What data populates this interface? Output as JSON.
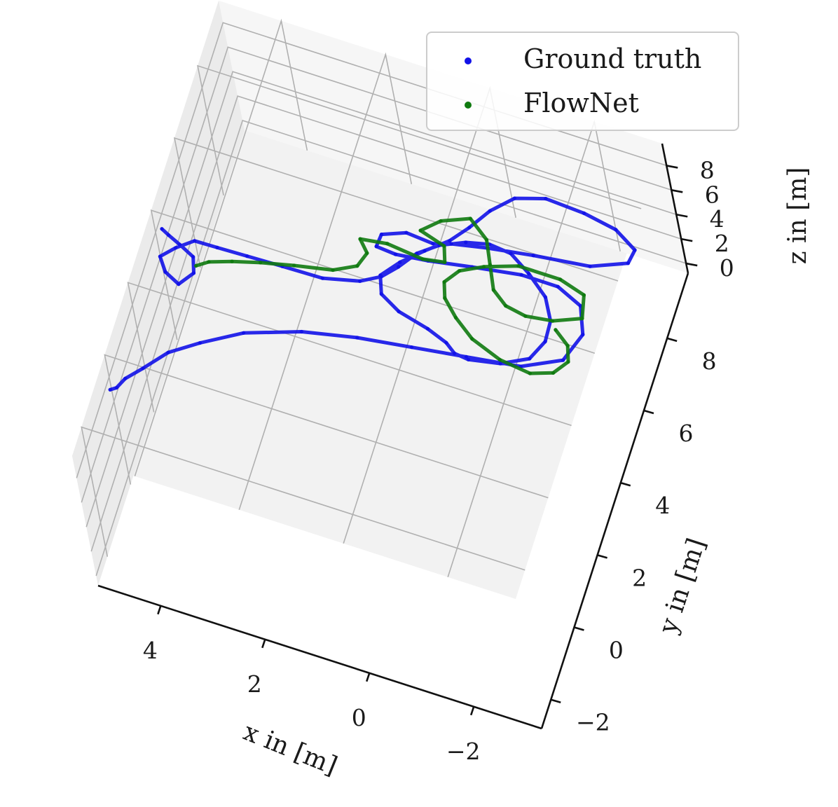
{
  "chart_data": {
    "type": "scatter",
    "projection": "3d",
    "xlabel": "x in [m]",
    "ylabel": "y in [m]",
    "zlabel": "z in [m]",
    "x_ticks": [
      "4",
      "2",
      "0",
      "−2"
    ],
    "y_ticks": [
      "−2",
      "0",
      "2",
      "4",
      "6",
      "8"
    ],
    "z_ticks": [
      "0",
      "2",
      "4",
      "6",
      "8"
    ],
    "xlim": [
      5.2,
      -3.3
    ],
    "ylim": [
      -2.8,
      9.8
    ],
    "zlim": [
      -0.8,
      9.8
    ],
    "grid": true,
    "legend": "top-right",
    "series": [
      {
        "name": "Ground truth",
        "color": "#1212e8",
        "points": [
          [
            5.0,
            -0.6,
            9.0
          ],
          [
            4.9,
            -0.5,
            9.0
          ],
          [
            4.8,
            -0.2,
            9.0
          ],
          [
            4.55,
            0.2,
            9.0
          ],
          [
            4.2,
            0.8,
            9.0
          ],
          [
            3.7,
            1.3,
            9.0
          ],
          [
            3.0,
            1.9,
            9.0
          ],
          [
            2.0,
            2.4,
            9.0
          ],
          [
            1.0,
            2.7,
            9.0
          ],
          [
            0.0,
            2.9,
            9.0
          ],
          [
            -1.0,
            3.1,
            9.0
          ],
          [
            -2.0,
            3.3,
            9.0
          ],
          [
            -2.7,
            3.8,
            9.0
          ],
          [
            -2.9,
            4.6,
            9.0
          ],
          [
            -2.7,
            5.3,
            9.0
          ],
          [
            -2.2,
            5.6,
            9.0
          ],
          [
            -1.5,
            5.6,
            9.0
          ],
          [
            -0.6,
            5.4,
            9.0
          ],
          [
            0.2,
            5.2,
            9.0
          ],
          [
            0.8,
            5.1,
            9.0
          ],
          [
            1.2,
            5.2,
            8.8
          ],
          [
            1.2,
            5.6,
            8.6
          ],
          [
            0.8,
            5.9,
            8.4
          ],
          [
            0.3,
            5.9,
            8.2
          ],
          [
            0.0,
            6.1,
            8.0
          ],
          [
            -0.6,
            6.4,
            7.6
          ],
          [
            -1.4,
            6.7,
            7.2
          ],
          [
            -2.4,
            7.0,
            6.8
          ],
          [
            -3.0,
            7.5,
            6.4
          ],
          [
            -3.0,
            8.0,
            6.0
          ],
          [
            -2.5,
            8.5,
            5.5
          ],
          [
            -1.8,
            8.8,
            5.0
          ],
          [
            -1.0,
            9.0,
            4.5
          ],
          [
            -0.4,
            8.9,
            4.0
          ],
          [
            0.0,
            8.5,
            3.6
          ],
          [
            0.3,
            8.0,
            3.3
          ],
          [
            0.6,
            7.6,
            3.0
          ],
          [
            1.0,
            7.2,
            2.8
          ],
          [
            1.4,
            6.8,
            2.5
          ],
          [
            1.7,
            6.4,
            2.2
          ],
          [
            1.6,
            6.0,
            2.0
          ],
          [
            1.2,
            5.7,
            2.0
          ],
          [
            0.6,
            5.5,
            2.0
          ],
          [
            0.2,
            5.3,
            2.0
          ],
          [
            0.0,
            5.1,
            2.0
          ],
          [
            -0.3,
            5.0,
            2.2
          ],
          [
            -0.9,
            5.1,
            2.4
          ],
          [
            -1.4,
            5.4,
            2.6
          ],
          [
            -1.6,
            5.9,
            2.8
          ],
          [
            -1.6,
            6.4,
            3.0
          ],
          [
            -1.4,
            6.9,
            3.2
          ],
          [
            -1.0,
            7.3,
            3.4
          ],
          [
            -0.6,
            7.6,
            3.6
          ],
          [
            -0.2,
            7.6,
            3.8
          ],
          [
            0.2,
            7.4,
            4.0
          ],
          [
            0.6,
            7.0,
            4.4
          ],
          [
            0.9,
            6.5,
            4.8
          ],
          [
            1.1,
            5.9,
            5.2
          ],
          [
            1.3,
            5.4,
            5.6
          ],
          [
            1.6,
            5.0,
            6.0
          ],
          [
            2.2,
            4.6,
            6.6
          ],
          [
            2.9,
            4.4,
            7.2
          ],
          [
            3.5,
            4.2,
            7.8
          ],
          [
            4.0,
            4.0,
            8.4
          ],
          [
            4.4,
            3.9,
            8.7
          ],
          [
            4.7,
            3.6,
            8.6
          ],
          [
            4.9,
            3.2,
            8.8
          ],
          [
            4.7,
            2.8,
            9.0
          ],
          [
            4.4,
            2.6,
            9.0
          ],
          [
            4.2,
            3.0,
            9.0
          ],
          [
            4.3,
            3.4,
            9.0
          ],
          [
            4.6,
            3.6,
            9.0
          ],
          [
            4.85,
            3.75,
            9.0
          ],
          [
            5.0,
            3.85,
            9.0
          ]
        ]
      },
      {
        "name": "FlowNet",
        "color": "#0f7a0f",
        "points": [
          [
            4.2,
            3.2,
            9.0
          ],
          [
            4.0,
            3.4,
            9.0
          ],
          [
            3.6,
            3.6,
            9.0
          ],
          [
            3.1,
            3.8,
            9.0
          ],
          [
            2.5,
            4.0,
            9.0
          ],
          [
            1.8,
            4.2,
            9.0
          ],
          [
            1.4,
            4.5,
            9.0
          ],
          [
            1.3,
            4.9,
            9.0
          ],
          [
            1.5,
            5.2,
            9.0
          ],
          [
            1.0,
            5.3,
            9.0
          ],
          [
            0.3,
            5.2,
            9.0
          ],
          [
            -0.1,
            5.3,
            9.0
          ],
          [
            0.0,
            5.7,
            9.0
          ],
          [
            0.5,
            5.9,
            9.0
          ],
          [
            0.2,
            6.3,
            9.0
          ],
          [
            -0.3,
            6.6,
            9.0
          ],
          [
            -0.7,
            6.2,
            9.0
          ],
          [
            -0.9,
            5.6,
            9.0
          ],
          [
            -1.1,
            5.0,
            9.0
          ],
          [
            -1.4,
            4.7,
            9.0
          ],
          [
            -1.8,
            4.6,
            9.0
          ],
          [
            -2.3,
            4.7,
            9.0
          ],
          [
            -2.8,
            5.0,
            9.0
          ],
          [
            -2.7,
            5.6,
            9.0
          ],
          [
            -2.2,
            5.8,
            9.0
          ],
          [
            -1.4,
            5.8,
            9.0
          ],
          [
            -0.8,
            5.5,
            9.0
          ],
          [
            -0.4,
            5.2,
            9.0
          ],
          [
            -0.2,
            4.8,
            9.0
          ],
          [
            -0.3,
            4.4,
            9.0
          ],
          [
            -0.6,
            4.0,
            9.0
          ],
          [
            -1.0,
            3.6,
            9.0
          ],
          [
            -1.6,
            3.3,
            9.0
          ],
          [
            -2.2,
            3.2,
            9.0
          ],
          [
            -2.6,
            3.4,
            9.0
          ],
          [
            -2.8,
            3.8,
            9.0
          ],
          [
            -2.7,
            4.2,
            9.0
          ],
          [
            -2.4,
            4.5,
            9.0
          ]
        ]
      }
    ]
  }
}
